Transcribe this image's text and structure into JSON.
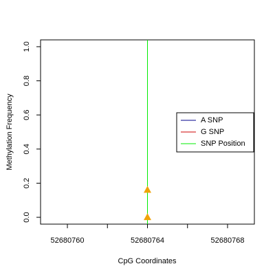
{
  "chart_data": {
    "type": "scatter",
    "xlabel": "CpG Coordinates",
    "ylabel": "Methylation Frequency",
    "xlim": [
      52680758.66,
      52680769.34
    ],
    "xticks": [
      52680760,
      52680764,
      52680768
    ],
    "xminor_ticks": [
      52680762,
      52680766
    ],
    "ylim": [
      -0.04,
      1.04
    ],
    "yticks": [
      {
        "value": 0,
        "label": "0.0"
      },
      0.2,
      0.4,
      0.6,
      0.8,
      {
        "value": 1,
        "label": "1.0"
      }
    ],
    "series": [
      {
        "name": "A SNP",
        "color": "#00008b",
        "x": [],
        "values": []
      },
      {
        "name": "G SNP",
        "color": "#cd0000",
        "x": [],
        "values": []
      }
    ],
    "snp_position": {
      "name": "SNP Position",
      "color": "#00ee00",
      "x": 52680764
    },
    "points": {
      "color": "#f0a30a",
      "x": [
        52680764,
        52680764
      ],
      "y": [
        0.16,
        0.0
      ]
    }
  }
}
